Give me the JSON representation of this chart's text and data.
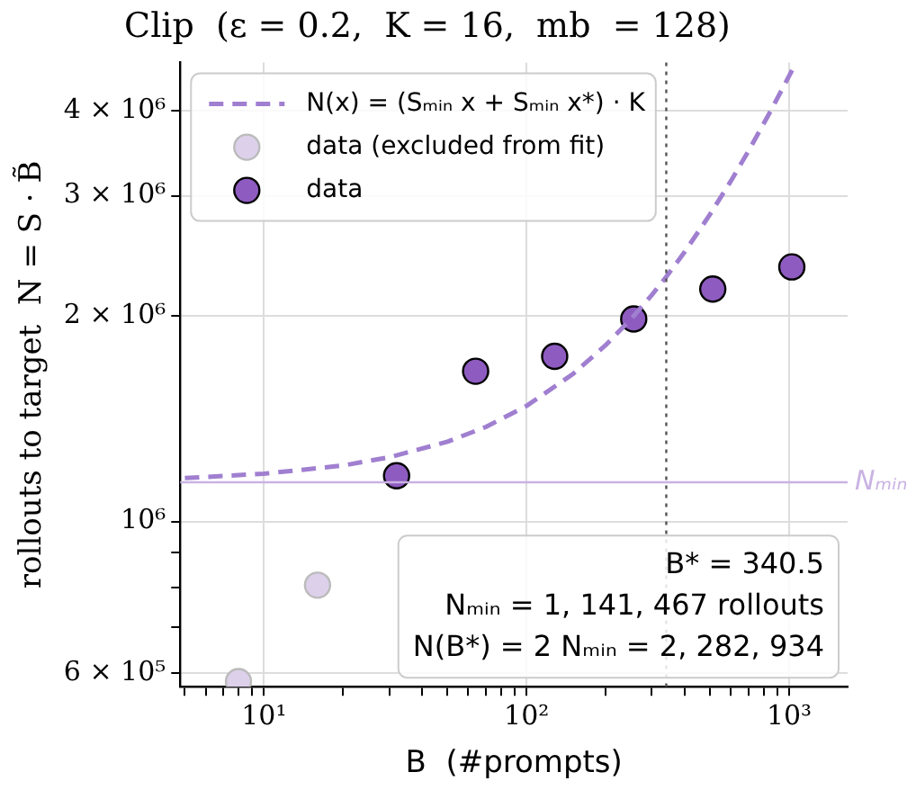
{
  "chart_data": {
    "type": "scatter",
    "title": "Clip  (ε = 0.2,  K = 16,  mb  = 128)",
    "xlabel": "B  (#prompts)",
    "ylabel": "rollouts to target  N = S · B̃",
    "log": "xy",
    "xlim": [
      4.8,
      1670
    ],
    "ylim": [
      573000,
      4700000
    ],
    "xticks": [
      {
        "value": 5,
        "label": null
      },
      {
        "value": 6,
        "label": null
      },
      {
        "value": 7,
        "label": null
      },
      {
        "value": 8,
        "label": null
      },
      {
        "value": 9,
        "label": null
      },
      {
        "value": 10,
        "label": "10¹"
      },
      {
        "value": 20,
        "label": null
      },
      {
        "value": 30,
        "label": null
      },
      {
        "value": 40,
        "label": null
      },
      {
        "value": 50,
        "label": null
      },
      {
        "value": 60,
        "label": null
      },
      {
        "value": 70,
        "label": null
      },
      {
        "value": 80,
        "label": null
      },
      {
        "value": 90,
        "label": null
      },
      {
        "value": 100,
        "label": "10²"
      },
      {
        "value": 200,
        "label": null
      },
      {
        "value": 300,
        "label": null
      },
      {
        "value": 400,
        "label": null
      },
      {
        "value": 500,
        "label": null
      },
      {
        "value": 600,
        "label": null
      },
      {
        "value": 700,
        "label": null
      },
      {
        "value": 800,
        "label": null
      },
      {
        "value": 900,
        "label": null
      },
      {
        "value": 1000,
        "label": "10³"
      }
    ],
    "yticks": [
      {
        "value": 600000,
        "label": "6 × 10⁵"
      },
      {
        "value": 700000,
        "label": null
      },
      {
        "value": 800000,
        "label": null
      },
      {
        "value": 900000,
        "label": null
      },
      {
        "value": 1000000,
        "label": "10⁶"
      },
      {
        "value": 2000000,
        "label": "2 × 10⁶"
      },
      {
        "value": 3000000,
        "label": "3 × 10⁶"
      },
      {
        "value": 4000000,
        "label": "4 × 10⁶"
      }
    ],
    "grid": true,
    "legend": "top left",
    "marker": "circle",
    "series": [
      {
        "name": "N(x) = (Sₘᵢₙ x + Sₘᵢₙ x*) · K",
        "type": "line",
        "line_style": "dashed",
        "marker": "none",
        "color": "#a07fd0",
        "x": [
          5,
          10,
          20,
          30,
          50,
          70,
          100,
          150,
          200,
          250,
          300,
          340.5,
          400,
          500,
          600,
          700,
          850,
          1000,
          1050
        ],
        "values": [
          1158000,
          1175000,
          1208000,
          1242000,
          1309000,
          1376000,
          1477000,
          1644000,
          1812000,
          1980000,
          2147000,
          2283000,
          2482000,
          2818000,
          3153000,
          3488000,
          3991000,
          4494000,
          4660000
        ]
      },
      {
        "name": "data (excluded from fit)",
        "type": "scatter",
        "color": "#dcd0ea",
        "x": [
          8,
          16
        ],
        "values": [
          583000,
          807000
        ]
      },
      {
        "name": "data",
        "type": "scatter",
        "color": "#8e5cc0",
        "x": [
          32,
          64,
          128,
          256,
          512,
          1024
        ],
        "values": [
          1167000,
          1660000,
          1746000,
          1980000,
          2190000,
          2360000
        ]
      }
    ],
    "ref_lines": [
      {
        "axis": "y",
        "value": 1141467,
        "label": "Nₘᵢₙ",
        "color": "#c9b2e3",
        "line_style": "solid"
      },
      {
        "axis": "x",
        "value": 340.5,
        "label": null,
        "color": "#555555",
        "line_style": "dotted"
      }
    ],
    "annotations": [
      "B* = 340.5",
      "Nₘᵢₙ = 1, 141, 467 rollouts",
      "N(B*) = 2 Nₘᵢₙ = 2, 282, 934"
    ]
  }
}
